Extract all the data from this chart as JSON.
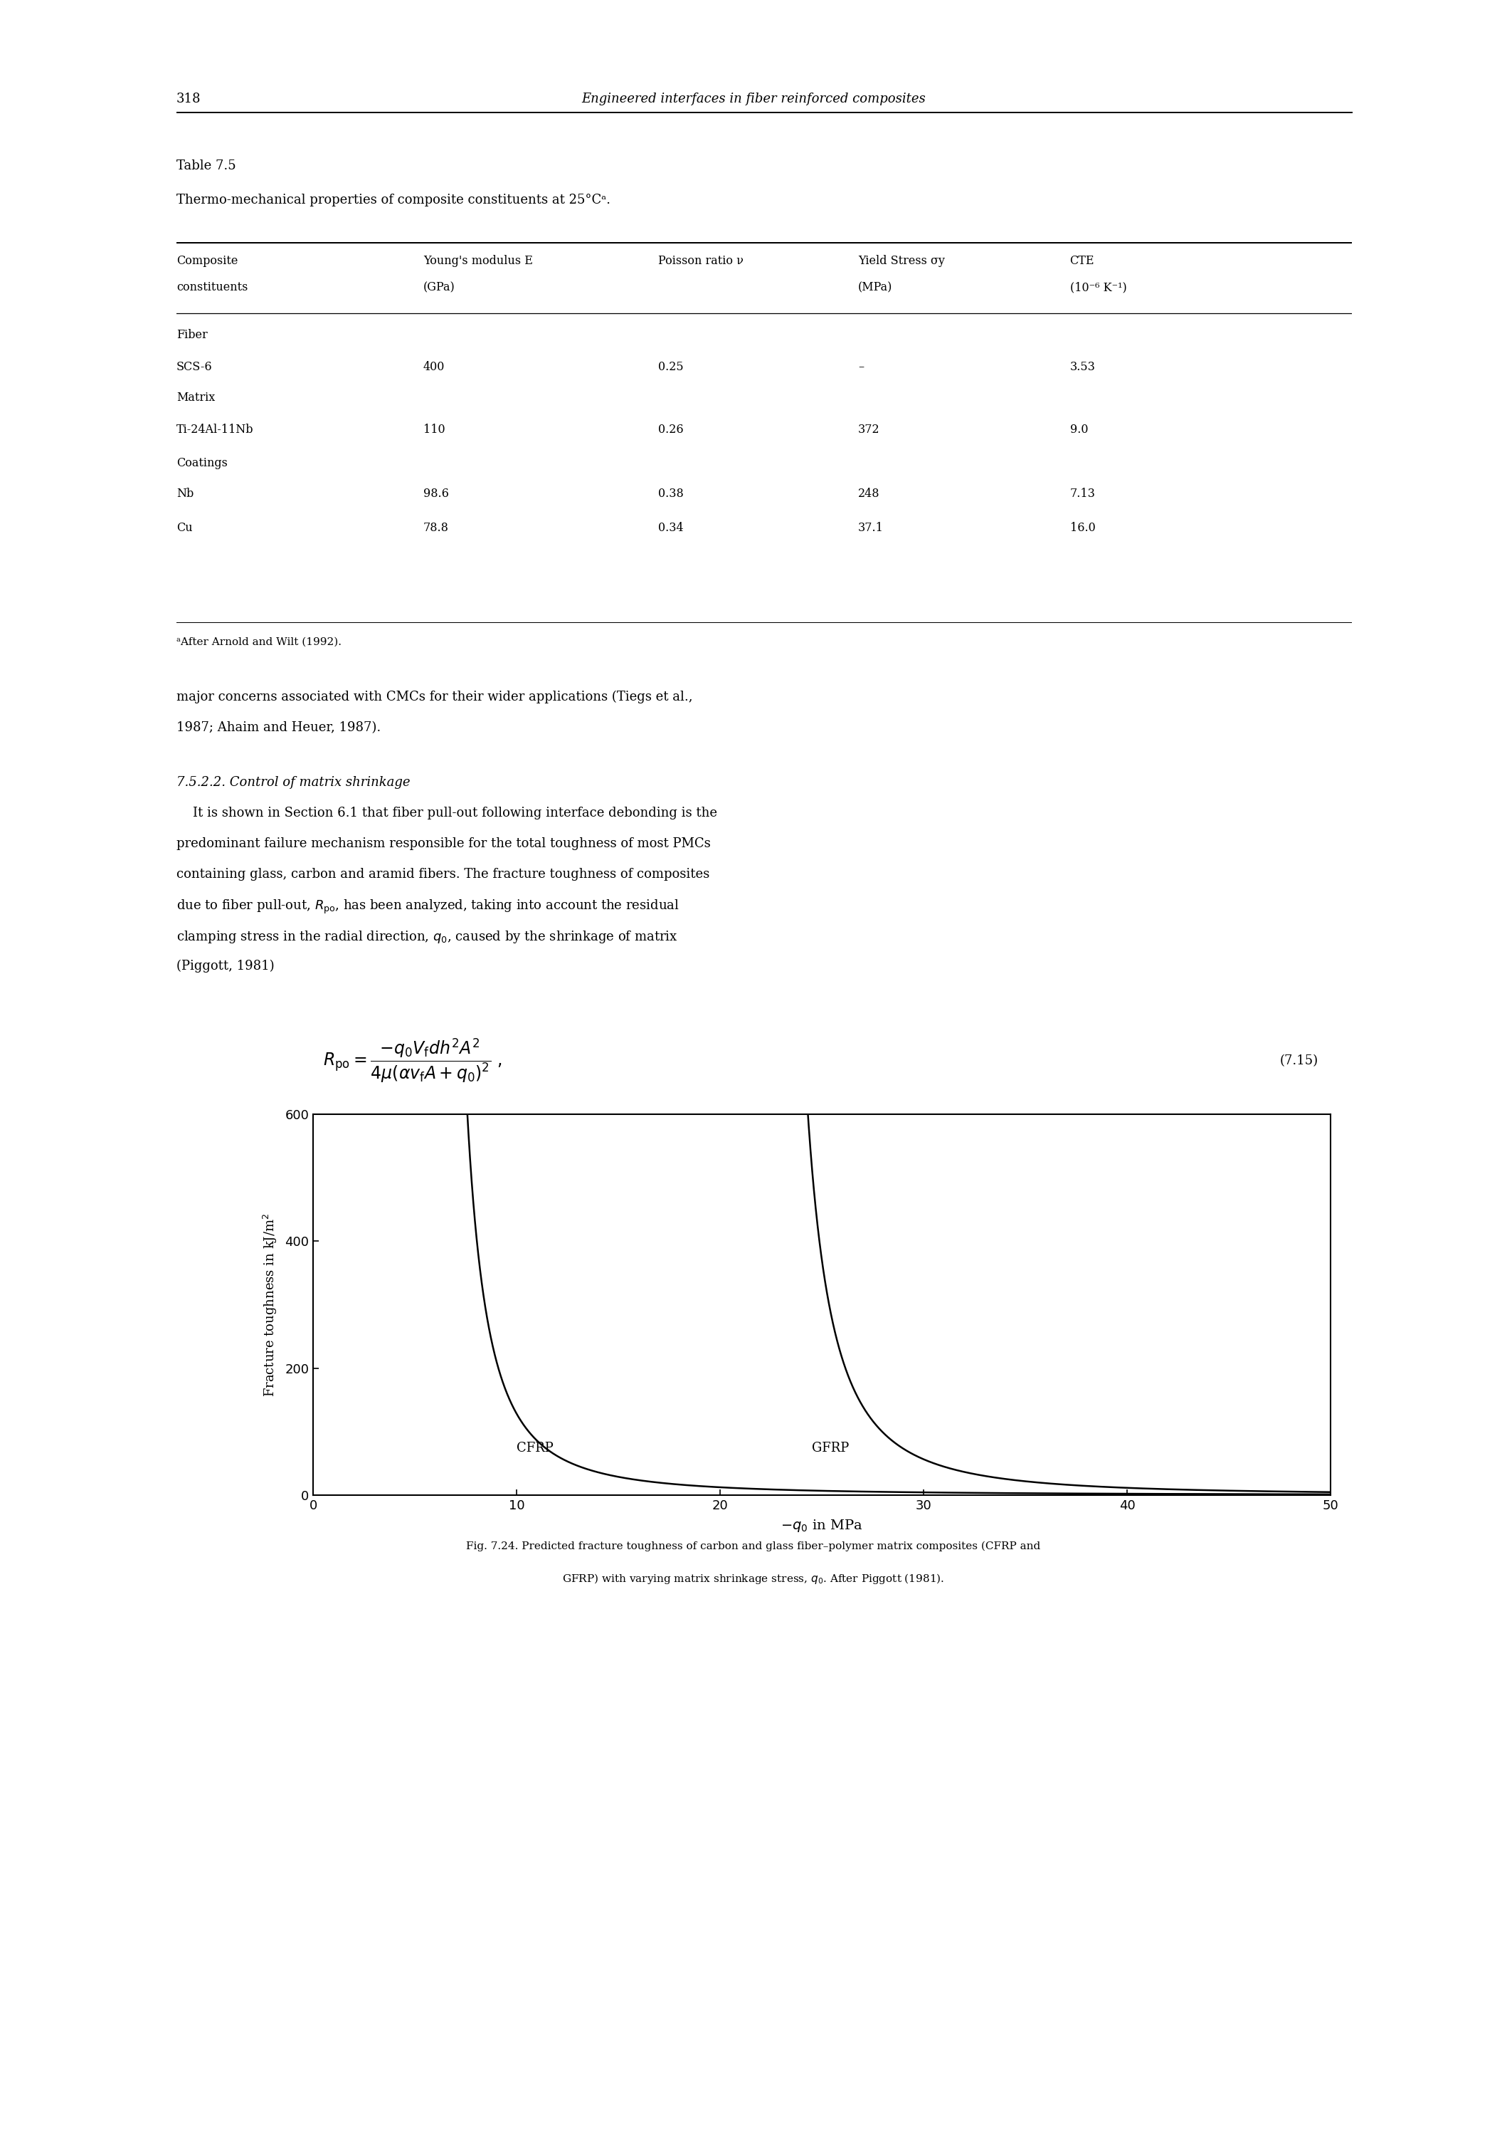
{
  "page_number": "318",
  "page_header": "Engineered interfaces in fiber reinforced composites",
  "table_title": "Table 7.5",
  "table_subtitle": "Thermo-mechanical properties of composite constituents at 25°Cᵃ.",
  "table_col_headers_line1": [
    "Composite",
    "Young's modulus E",
    "Poisson ratio ν",
    "Yield Stress σy",
    "CTE"
  ],
  "table_col_headers_line2": [
    "constituents",
    "(GPa)",
    "",
    "(MPa)",
    "(10⁻⁶ K⁻¹)"
  ],
  "table_rows": [
    [
      "Fiber",
      "",
      "",
      "",
      ""
    ],
    [
      "SCS-6",
      "400",
      "0.25",
      "–",
      "3.53"
    ],
    [
      "Matrix",
      "",
      "",
      "",
      ""
    ],
    [
      "Ti-24Al-11Nb",
      "110",
      "0.26",
      "372",
      "9.0"
    ],
    [
      "Coatings",
      "",
      "",
      "",
      ""
    ],
    [
      "Nb",
      "98.6",
      "0.38",
      "248",
      "7.13"
    ],
    [
      "Cu",
      "78.8",
      "0.34",
      "37.1",
      "16.0"
    ]
  ],
  "table_footnote": "ᵃAfter Arnold and Wilt (1992).",
  "para1_line1": "major concerns associated with CMCs for their wider applications (Tiegs et al.,",
  "para1_line2": "1987; Ahaim and Heuer, 1987).",
  "section_title": "7.5.2.2. Control of matrix shrinkage",
  "para2_lines": [
    "    It is shown in Section 6.1 that fiber pull-out following interface debonding is the",
    "predominant failure mechanism responsible for the total toughness of most PMCs",
    "containing glass, carbon and aramid fibers. The fracture toughness of composites",
    "due to fiber pull-out, $R_{\\mathrm{po}}$, has been analyzed, taking into account the residual",
    "clamping stress in the radial direction, $q_0$, caused by the shrinkage of matrix",
    "(Piggott, 1981)"
  ],
  "equation_number": "(7.15)",
  "xlabel": "$-q_0$ in MPa",
  "ylabel": "Fracture toughness in kJ/m$^2$",
  "xlim": [
    0,
    50
  ],
  "ylim": [
    0,
    600
  ],
  "xticks": [
    0,
    10,
    20,
    30,
    40,
    50
  ],
  "yticks": [
    0,
    200,
    400,
    600
  ],
  "cfrp_label": "CFRP",
  "gfrp_label": "GFRP",
  "cfrp_asymptote": 5.5,
  "gfrp_asymptote": 21.8,
  "cfrp_scale": 2600,
  "gfrp_scale": 3800,
  "caption_line1": "Fig. 7.24. Predicted fracture toughness of carbon and glass fiber–polymer matrix composites (CFRP and",
  "caption_line2": "GFRP) with varying matrix shrinkage stress, $q_0$. After Piggott (1981).",
  "bg_color": "#ffffff",
  "line_color": "#000000",
  "text_fontsize": 13,
  "small_fontsize": 11,
  "header_fontsize": 13
}
